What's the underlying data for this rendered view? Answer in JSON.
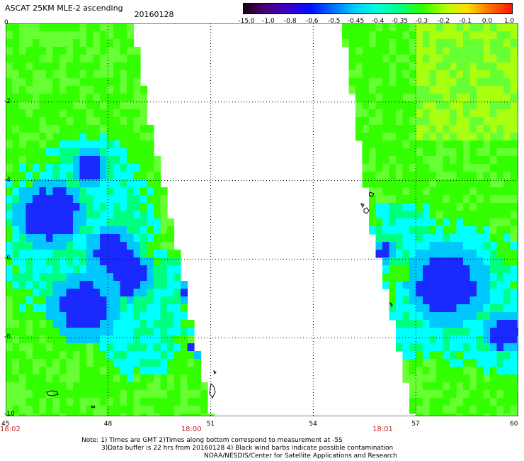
{
  "title": "ASCAT 25KM MLE-2 ascending",
  "date": "20160128",
  "colorbar": {
    "labels": [
      "-15.0",
      "-1.0",
      "-0.8",
      "-0.6",
      "-0.5",
      "-0.45",
      "-0.4",
      "-0.35",
      "-0.3",
      "-0.2",
      "-0.1",
      "0.0",
      "1.0"
    ],
    "colors": [
      "#1a0010",
      "#4a0080",
      "#3a00cc",
      "#0010ff",
      "#0070ff",
      "#00d0ff",
      "#00ffd8",
      "#00ff80",
      "#30ff00",
      "#b0ff00",
      "#ffe000",
      "#ff7000",
      "#ff1500"
    ]
  },
  "x_axis": {
    "tick_values": [
      45,
      48,
      51,
      54,
      57,
      60
    ],
    "tick_labels": [
      "45",
      "48",
      "51",
      "54",
      "57",
      "60"
    ],
    "range": [
      45,
      60
    ]
  },
  "y_axis": {
    "tick_values": [
      0,
      -2,
      -4,
      -6,
      -8,
      -10
    ],
    "tick_labels": [
      "0",
      "-2",
      "-4",
      "-6",
      "-8",
      "-10"
    ],
    "range": [
      -10,
      0
    ]
  },
  "times": [
    {
      "label": "18:02",
      "lon": 45
    },
    {
      "label": "18:00",
      "lon": 50.3
    },
    {
      "label": "18:01",
      "lon": 55.9
    }
  ],
  "notes": [
    "Note: 1) Times are GMT 2)Times along bottom correspond to measurement at -5S",
    "3)Data buffer is 22 hrs from 20160128 4) Black wind barbs indicate possible contamination",
    "NOAA/NESDIS/Center for Satellite Applications and Research"
  ],
  "palette": {
    "green": "#33ff00",
    "lightgreen": "#66ff33",
    "yellowgreen": "#a8ff10",
    "springgreen": "#00ff80",
    "cyan": "#00ffff",
    "lightblue": "#00c8ff",
    "blue": "#1a2aff"
  }
}
